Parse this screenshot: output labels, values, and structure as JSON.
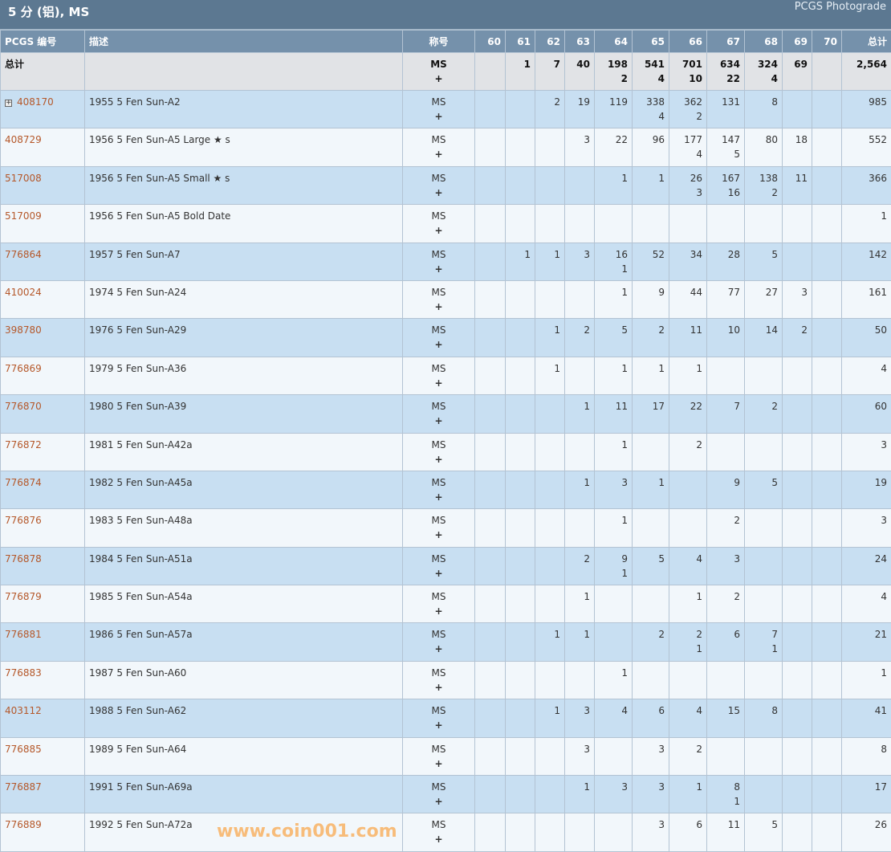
{
  "title": "5 分 (铝), MS",
  "brand": "PCGS Photograde",
  "watermark": "www.coin001.com",
  "colors": {
    "header_bg": "#5c7891",
    "column_header_bg": "#7591ab",
    "row_odd": "#c8dff2",
    "row_even": "#f2f7fb",
    "code_link": "#b5582a",
    "total_row": "#e1e3e6"
  },
  "columns": {
    "code": "PCGS 编号",
    "desc": "描述",
    "designation": "称号",
    "grades": [
      "60",
      "61",
      "62",
      "63",
      "64",
      "65",
      "66",
      "67",
      "68",
      "69",
      "70"
    ],
    "total": "总计"
  },
  "totals": {
    "label": "总计",
    "designation": "MS",
    "plus": "+",
    "g": {
      "61": "1",
      "62": "7",
      "63": "40",
      "64": "198",
      "65": "541",
      "66": "701",
      "67": "634",
      "68": "324",
      "69": "69"
    },
    "p": {
      "64": "2",
      "65": "4",
      "66": "10",
      "67": "22",
      "68": "4"
    },
    "total": "2,564"
  },
  "rows": [
    {
      "code": "408170",
      "expandable": true,
      "desc": "1955 5 Fen Sun-A2",
      "designation": "MS",
      "plus": "+",
      "g": {
        "62": "2",
        "63": "19",
        "64": "119",
        "65": "338",
        "66": "362",
        "67": "131",
        "68": "8"
      },
      "p": {
        "65": "4",
        "66": "2"
      },
      "total": "985"
    },
    {
      "code": "408729",
      "desc": "1956 5 Fen Sun-A5 Large ★ s",
      "designation": "MS",
      "plus": "+",
      "g": {
        "63": "3",
        "64": "22",
        "65": "96",
        "66": "177",
        "67": "147",
        "68": "80",
        "69": "18"
      },
      "p": {
        "66": "4",
        "67": "5"
      },
      "total": "552"
    },
    {
      "code": "517008",
      "desc": "1956 5 Fen Sun-A5 Small ★ s",
      "designation": "MS",
      "plus": "+",
      "g": {
        "64": "1",
        "65": "1",
        "66": "26",
        "67": "167",
        "68": "138",
        "69": "11"
      },
      "p": {
        "66": "3",
        "67": "16",
        "68": "2"
      },
      "total": "366"
    },
    {
      "code": "517009",
      "desc": "1956 5 Fen Sun-A5 Bold Date",
      "designation": "MS",
      "plus": "+",
      "g": {},
      "p": {},
      "total": "1"
    },
    {
      "code": "776864",
      "desc": "1957 5 Fen Sun-A7",
      "designation": "MS",
      "plus": "+",
      "g": {
        "61": "1",
        "62": "1",
        "63": "3",
        "64": "16",
        "65": "52",
        "66": "34",
        "67": "28",
        "68": "5"
      },
      "p": {
        "64": "1"
      },
      "total": "142"
    },
    {
      "code": "410024",
      "desc": "1974 5 Fen Sun-A24",
      "designation": "MS",
      "plus": "+",
      "g": {
        "64": "1",
        "65": "9",
        "66": "44",
        "67": "77",
        "68": "27",
        "69": "3"
      },
      "p": {},
      "total": "161"
    },
    {
      "code": "398780",
      "desc": "1976 5 Fen Sun-A29",
      "designation": "MS",
      "plus": "+",
      "g": {
        "62": "1",
        "63": "2",
        "64": "5",
        "65": "2",
        "66": "11",
        "67": "10",
        "68": "14",
        "69": "2"
      },
      "p": {},
      "total": "50"
    },
    {
      "code": "776869",
      "desc": "1979 5 Fen Sun-A36",
      "designation": "MS",
      "plus": "+",
      "g": {
        "62": "1",
        "64": "1",
        "65": "1",
        "66": "1"
      },
      "p": {},
      "total": "4"
    },
    {
      "code": "776870",
      "desc": "1980 5 Fen Sun-A39",
      "designation": "MS",
      "plus": "+",
      "g": {
        "63": "1",
        "64": "11",
        "65": "17",
        "66": "22",
        "67": "7",
        "68": "2"
      },
      "p": {},
      "total": "60"
    },
    {
      "code": "776872",
      "desc": "1981 5 Fen Sun-A42a",
      "designation": "MS",
      "plus": "+",
      "g": {
        "64": "1",
        "66": "2"
      },
      "p": {},
      "total": "3"
    },
    {
      "code": "776874",
      "desc": "1982 5 Fen Sun-A45a",
      "designation": "MS",
      "plus": "+",
      "g": {
        "63": "1",
        "64": "3",
        "65": "1",
        "67": "9",
        "68": "5"
      },
      "p": {},
      "total": "19"
    },
    {
      "code": "776876",
      "desc": "1983 5 Fen Sun-A48a",
      "designation": "MS",
      "plus": "+",
      "g": {
        "64": "1",
        "67": "2"
      },
      "p": {},
      "total": "3"
    },
    {
      "code": "776878",
      "desc": "1984 5 Fen Sun-A51a",
      "designation": "MS",
      "plus": "+",
      "g": {
        "63": "2",
        "64": "9",
        "65": "5",
        "66": "4",
        "67": "3"
      },
      "p": {
        "64": "1"
      },
      "total": "24"
    },
    {
      "code": "776879",
      "desc": "1985 5 Fen Sun-A54a",
      "designation": "MS",
      "plus": "+",
      "g": {
        "63": "1",
        "66": "1",
        "67": "2"
      },
      "p": {},
      "total": "4"
    },
    {
      "code": "776881",
      "desc": "1986 5 Fen Sun-A57a",
      "designation": "MS",
      "plus": "+",
      "g": {
        "62": "1",
        "63": "1",
        "65": "2",
        "66": "2",
        "67": "6",
        "68": "7"
      },
      "p": {
        "66": "1",
        "68": "1"
      },
      "total": "21"
    },
    {
      "code": "776883",
      "desc": "1987 5 Fen Sun-A60",
      "designation": "MS",
      "plus": "+",
      "g": {
        "64": "1"
      },
      "p": {},
      "total": "1"
    },
    {
      "code": "403112",
      "desc": "1988 5 Fen Sun-A62",
      "designation": "MS",
      "plus": "+",
      "g": {
        "62": "1",
        "63": "3",
        "64": "4",
        "65": "6",
        "66": "4",
        "67": "15",
        "68": "8"
      },
      "p": {},
      "total": "41"
    },
    {
      "code": "776885",
      "desc": "1989 5 Fen Sun-A64",
      "designation": "MS",
      "plus": "+",
      "g": {
        "63": "3",
        "65": "3",
        "66": "2"
      },
      "p": {},
      "total": "8"
    },
    {
      "code": "776887",
      "desc": "1991 5 Fen Sun-A69a",
      "designation": "MS",
      "plus": "+",
      "g": {
        "63": "1",
        "64": "3",
        "65": "3",
        "66": "1",
        "67": "8"
      },
      "p": {
        "67": "1"
      },
      "total": "17"
    },
    {
      "code": "776889",
      "desc": "1992 5 Fen Sun-A72a",
      "designation": "MS",
      "plus": "+",
      "g": {
        "65": "3",
        "66": "6",
        "67": "11",
        "68": "5"
      },
      "p": {},
      "total": "26"
    }
  ]
}
